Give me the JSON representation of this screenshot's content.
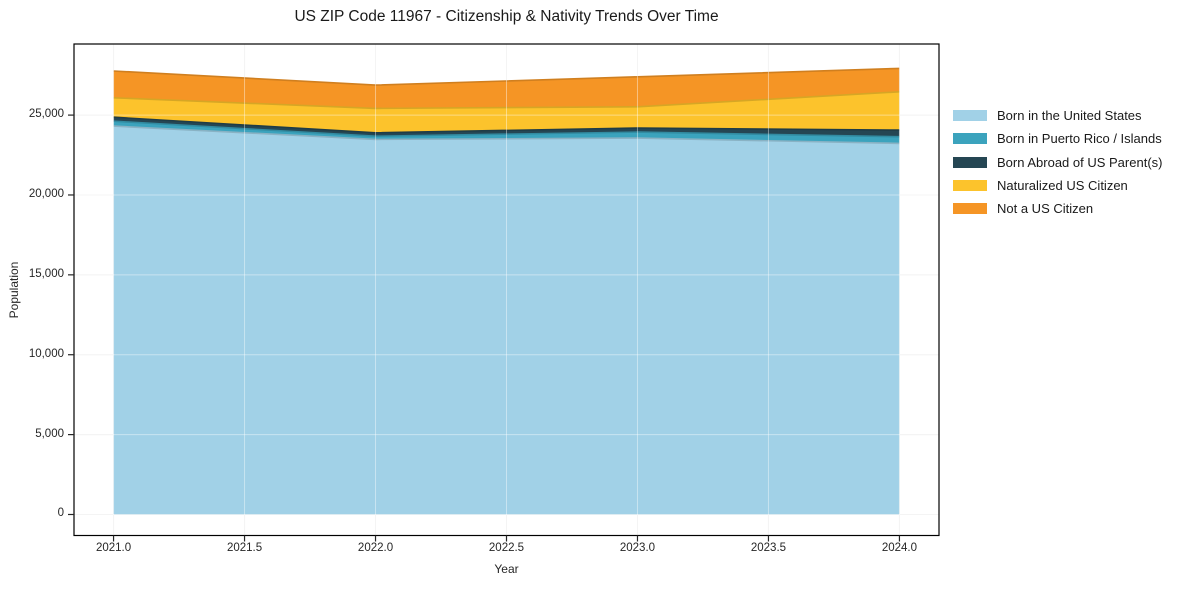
{
  "chart_data": {
    "type": "area",
    "stacked": true,
    "title": "US ZIP Code 11967 - Citizenship & Nativity Trends Over Time",
    "xlabel": "Year",
    "ylabel": "Population",
    "x": [
      2021,
      2022,
      2023,
      2024
    ],
    "series": [
      {
        "name": "Born in the United States",
        "color": "#a1d1e7",
        "values": [
          24310,
          23480,
          23560,
          23230
        ]
      },
      {
        "name": "Born in Puerto Rico / Islands",
        "color": "#3ba3bd",
        "values": [
          310,
          200,
          375,
          415
        ]
      },
      {
        "name": "Born Abroad of US Parent(s)",
        "color": "#254653",
        "values": [
          250,
          210,
          255,
          415
        ]
      },
      {
        "name": "Naturalized US Citizen",
        "color": "#fcc32c",
        "values": [
          1210,
          1530,
          1330,
          2400
        ]
      },
      {
        "name": "Not a US Citizen",
        "color": "#f59525",
        "values": [
          1680,
          1460,
          1880,
          1465
        ]
      }
    ],
    "xlim": [
      2020.849,
      2024.151
    ],
    "ylim": [
      -1315,
      29450
    ],
    "xticks": [
      2021.0,
      2021.5,
      2022.0,
      2022.5,
      2023.0,
      2023.5,
      2024.0
    ],
    "yticks": [
      0,
      5000,
      10000,
      15000,
      20000,
      25000
    ],
    "grid": true,
    "legend_position": "right",
    "frame_color": "#000000",
    "grid_color": "#ececec",
    "tick_color": "#262626"
  }
}
